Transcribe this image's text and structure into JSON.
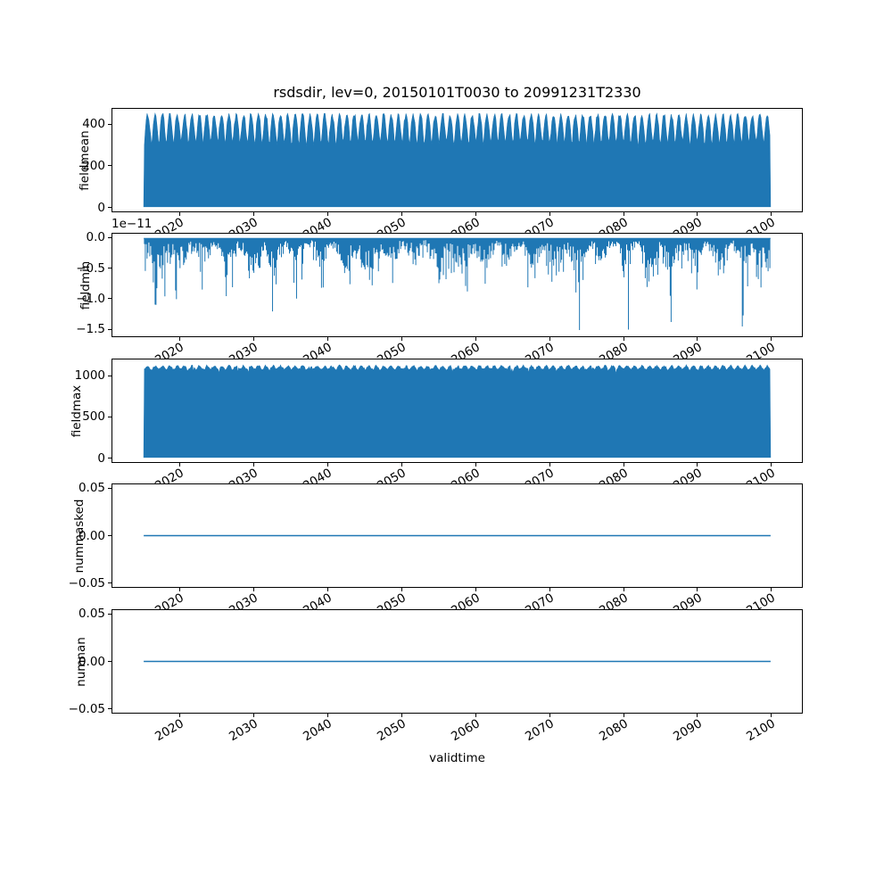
{
  "chart_data": {
    "type": "line",
    "title": "rsdsdir, lev=0, 20150101T0030 to 20991231T2330",
    "xlabel": "validtime",
    "color": "#1f77b4",
    "grid": false,
    "legend": "none",
    "x": {
      "label": "validtime",
      "lim": [
        2010.75,
        2104.25
      ],
      "ticks": [
        2020,
        2030,
        2040,
        2050,
        2060,
        2070,
        2080,
        2090,
        2100
      ],
      "tick_labels": [
        "2020",
        "2030",
        "2040",
        "2050",
        "2060",
        "2070",
        "2080",
        "2090",
        "2100"
      ],
      "data_start": 2015.0,
      "data_end": 2100.0
    },
    "plots": [
      {
        "name": "fieldmean",
        "ylabel": "fieldmean",
        "type": "area-dense",
        "ylim": [
          -22.75,
          477.75
        ],
        "ytick_values": [
          0,
          200,
          400
        ],
        "ytick_labels": [
          "0",
          "200",
          "400"
        ],
        "data": {
          "min": 0,
          "max": 455,
          "envelope_base": 300,
          "envelope_amp": 152,
          "envelope_pow": 0.6,
          "noise": 26,
          "description": "Half-hourly field mean; oscillates every day between 0 and a seasonally varying daytime maximum of roughly 290-455, rendered as a dense filled band from 2015 to 2100."
        }
      },
      {
        "name": "fieldmin",
        "ylabel": "fieldmin",
        "type": "spikes-down",
        "offset_text": "1e−11",
        "unit_scale": 1e-11,
        "ylim": [
          -1.6275,
          0.0775
        ],
        "ytick_values": [
          0,
          -0.5,
          -1.0,
          -1.5
        ],
        "ytick_labels": [
          "0.0",
          "−0.5",
          "−1.0",
          "−1.5"
        ],
        "data": {
          "baseline": 0,
          "deepest": -1.55,
          "dense_range": [
            -0.6,
            0
          ],
          "description": "Field minimum stays at ~0 with dense negative spikes (units of 1e-11); most between 0 and -0.6, frequent spikes near -1.0 and occasional spikes down to about -1.55."
        }
      },
      {
        "name": "fieldmax",
        "ylabel": "fieldmax",
        "type": "area-dense",
        "ylim": [
          -57.5,
          1207.5
        ],
        "ytick_values": [
          0,
          500,
          1000
        ],
        "ytick_labels": [
          "0",
          "500",
          "1000"
        ],
        "data": {
          "min": 0,
          "max": 1148,
          "envelope_base": 1085,
          "envelope_amp": 45,
          "envelope_pow": 1,
          "noise": 24,
          "dip_chance": 0.05,
          "dip_depth": 70,
          "description": "Field maximum oscillates daily between 0 and ~1050-1150 for the whole 2015-2100 period, rendered as a dense filled band."
        }
      },
      {
        "name": "nummasked",
        "ylabel": "nummasked",
        "type": "const-line",
        "value": 0,
        "ylim": [
          -0.055,
          0.055
        ],
        "ytick_values": [
          0.05,
          0,
          -0.05
        ],
        "ytick_labels": [
          "0.05",
          "0.00",
          "−0.05"
        ],
        "data": {
          "constant": 0,
          "description": "Number of masked points is constantly 0 from 2015 to 2100."
        }
      },
      {
        "name": "numnan",
        "ylabel": "numnan",
        "type": "const-line",
        "value": 0,
        "ylim": [
          -0.055,
          0.055
        ],
        "ytick_values": [
          0.05,
          0,
          -0.05
        ],
        "ytick_labels": [
          "0.05",
          "0.00",
          "−0.05"
        ],
        "data": {
          "constant": 0,
          "description": "Number of NaN points is constantly 0 from 2015 to 2100."
        }
      }
    ]
  }
}
